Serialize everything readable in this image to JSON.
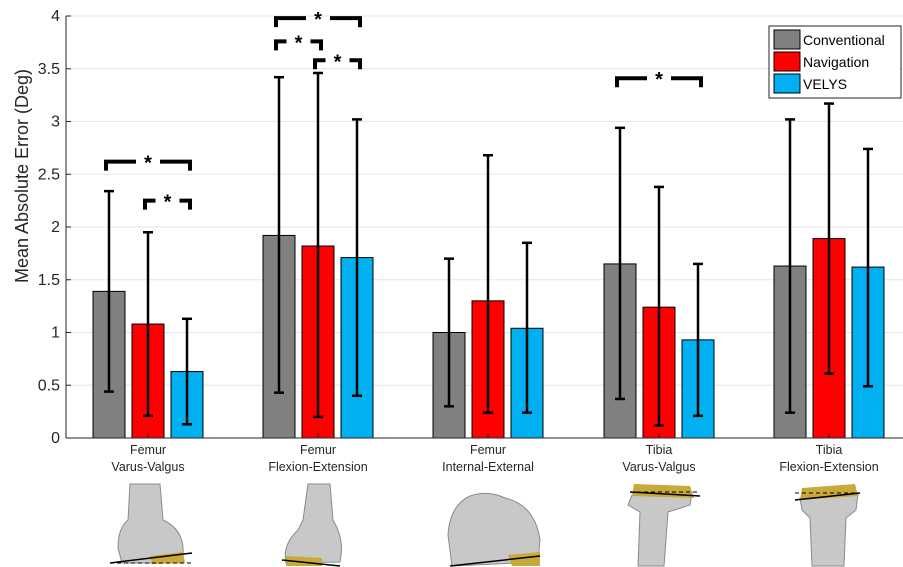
{
  "chart_data": {
    "type": "bar",
    "ylabel": "Mean Absolute Error (Deg)",
    "ylim": [
      0,
      4
    ],
    "yticks": [
      "0",
      "0.5",
      "1",
      "1.5",
      "2",
      "2.5",
      "3",
      "3.5",
      "4"
    ],
    "grid": "horizontal",
    "legend_position": "top-right",
    "categories": [
      [
        "Femur",
        "Varus-Valgus"
      ],
      [
        "Femur",
        "Flexion-Extension"
      ],
      [
        "Femur",
        "Internal-External"
      ],
      [
        "Tibia",
        "Varus-Valgus"
      ],
      [
        "Tibia",
        "Flexion-Extension"
      ]
    ],
    "series": [
      {
        "name": "Conventional",
        "color": "#808080",
        "values": [
          1.39,
          1.92,
          1.0,
          1.65,
          1.63
        ],
        "error_low": [
          0.44,
          0.43,
          0.3,
          0.37,
          0.24
        ],
        "error_high": [
          2.34,
          3.42,
          1.7,
          2.94,
          3.02
        ]
      },
      {
        "name": "Navigation",
        "color": "#ff0000",
        "values": [
          1.08,
          1.82,
          1.3,
          1.24,
          1.89
        ],
        "error_low": [
          0.21,
          0.2,
          0.24,
          0.12,
          0.61
        ],
        "error_high": [
          1.95,
          3.46,
          2.68,
          2.38,
          3.17
        ]
      },
      {
        "name": "VELYS",
        "color": "#00b0f0",
        "values": [
          0.63,
          1.71,
          1.04,
          0.93,
          1.62
        ],
        "error_low": [
          0.13,
          0.4,
          0.24,
          0.21,
          0.49
        ],
        "error_high": [
          1.13,
          3.02,
          1.85,
          1.65,
          2.74
        ]
      }
    ],
    "significance": [
      {
        "category": 0,
        "from_series": 0,
        "to_series": 2,
        "y": 2.62,
        "label": "*"
      },
      {
        "category": 0,
        "from_series": 1,
        "to_series": 2,
        "y": 2.25,
        "label": "*"
      },
      {
        "category": 1,
        "from_series": 0,
        "to_series": 2,
        "y": 3.98,
        "label": "*"
      },
      {
        "category": 1,
        "from_series": 0,
        "to_series": 1,
        "y": 3.76,
        "label": "*"
      },
      {
        "category": 1,
        "from_series": 1,
        "to_series": 2,
        "y": 3.58,
        "label": "*"
      },
      {
        "category": 3,
        "from_series": 0,
        "to_series": 2,
        "y": 3.41,
        "label": "*"
      }
    ]
  },
  "bone_images": [
    {
      "name": "femur-varus-valgus-bone"
    },
    {
      "name": "femur-flexion-extension-bone"
    },
    {
      "name": "femur-internal-external-bone"
    },
    {
      "name": "tibia-varus-valgus-bone"
    },
    {
      "name": "tibia-flexion-extension-bone"
    }
  ]
}
